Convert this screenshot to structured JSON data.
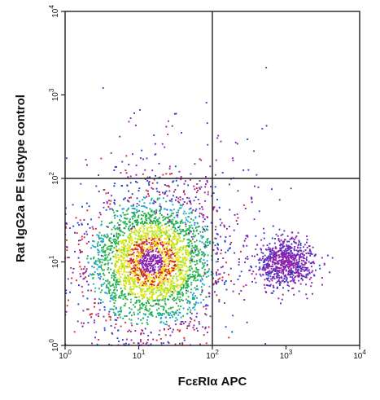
{
  "chart_data": {
    "type": "scatter",
    "subtype": "flow-cytometry density dot plot",
    "xlabel": "FcεRIα APC",
    "ylabel": "Rat IgG2a PE Isotype control",
    "x_scale": "log",
    "y_scale": "log",
    "xlim": [
      1,
      10000
    ],
    "ylim": [
      1,
      10000
    ],
    "x_ticks": [
      {
        "value": 1,
        "mantissa": "10",
        "exp": "0"
      },
      {
        "value": 10,
        "mantissa": "10",
        "exp": "1"
      },
      {
        "value": 100,
        "mantissa": "10",
        "exp": "2"
      },
      {
        "value": 1000,
        "mantissa": "10",
        "exp": "3"
      },
      {
        "value": 10000,
        "mantissa": "10",
        "exp": "4"
      }
    ],
    "y_ticks": [
      {
        "value": 1,
        "mantissa": "10",
        "exp": "0"
      },
      {
        "value": 10,
        "mantissa": "10",
        "exp": "1"
      },
      {
        "value": 100,
        "mantissa": "10",
        "exp": "2"
      },
      {
        "value": 1000,
        "mantissa": "10",
        "exp": "3"
      },
      {
        "value": 10000,
        "mantissa": "10",
        "exp": "4"
      }
    ],
    "quadrant_gates": {
      "x": 100,
      "y": 100
    },
    "populations": [
      {
        "description": "main negative population",
        "center": [
          15,
          10
        ],
        "spread_decades": [
          0.45,
          0.4
        ],
        "weight": 0.76
      },
      {
        "description": "FcεRIα+ population",
        "center": [
          950,
          10
        ],
        "spread_decades": [
          0.2,
          0.14
        ],
        "weight": 0.19
      },
      {
        "description": "sparse events",
        "center": [
          35,
          60
        ],
        "spread_decades": [
          0.7,
          0.6
        ],
        "weight": 0.05
      }
    ],
    "density_colors": [
      "#8a22b0",
      "#1e3fd0",
      "#1a9ee6",
      "#22b14c",
      "#9be22b",
      "#f3e51b",
      "#d6242c"
    ],
    "grid": false,
    "legend": "none"
  }
}
